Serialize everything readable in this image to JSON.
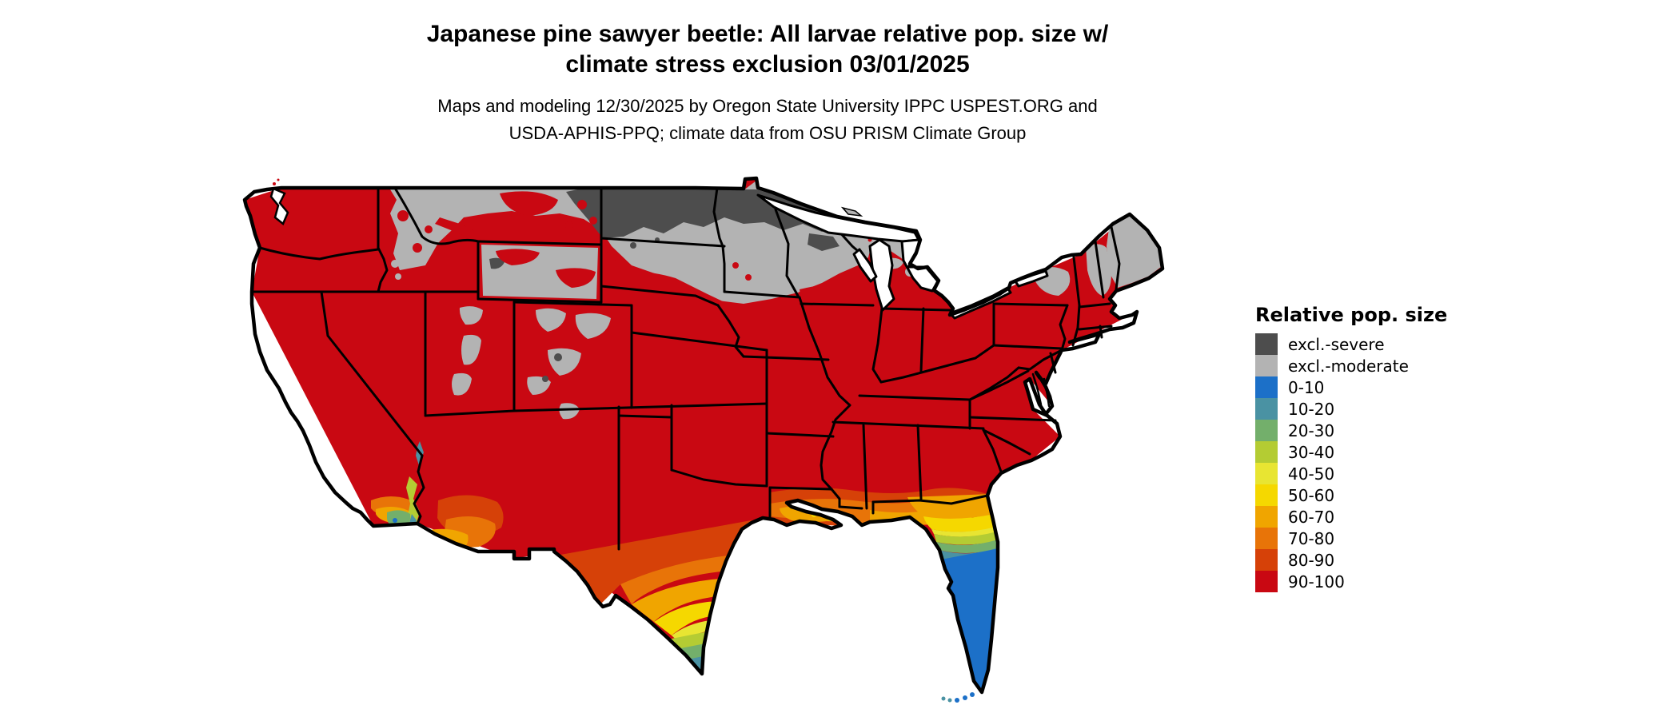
{
  "header": {
    "title_line1": "Japanese pine sawyer beetle: All larvae relative pop. size w/",
    "title_line2": "climate stress exclusion 03/01/2025",
    "subtitle_line1": "Maps and modeling 12/30/2025 by Oregon State University IPPC USPEST.ORG and",
    "subtitle_line2": "USDA-APHIS-PPQ; climate data from OSU PRISM Climate Group"
  },
  "legend": {
    "title": "Relative pop. size",
    "items": [
      {
        "label": "excl.-severe",
        "color": "#4D4D4D"
      },
      {
        "label": "excl.-moderate",
        "color": "#B3B3B3"
      },
      {
        "label": "0-10",
        "color": "#1C70C8"
      },
      {
        "label": "10-20",
        "color": "#4A92A3"
      },
      {
        "label": "20-30",
        "color": "#73AF6B"
      },
      {
        "label": "30-40",
        "color": "#B4CC33"
      },
      {
        "label": "40-50",
        "color": "#E8E532"
      },
      {
        "label": "50-60",
        "color": "#F5D800"
      },
      {
        "label": "60-70",
        "color": "#F0A500"
      },
      {
        "label": "70-80",
        "color": "#E87408"
      },
      {
        "label": "80-90",
        "color": "#D64108"
      },
      {
        "label": "90-100",
        "color": "#C90812"
      }
    ]
  },
  "map": {
    "type": "choropleth-raster",
    "area": "contiguous United States with state borders",
    "base_color": "#C90812",
    "water_color": "#FFFFFF",
    "border_color": "#000000",
    "regions_summary": [
      {
        "class": "excl.-severe",
        "areas": "North Dakota, northern Minnesota, northern Wisconsin, northeastern Montana, small spots in Wyoming and Colorado"
      },
      {
        "class": "excl.-moderate",
        "areas": "Idaho and Montana mountains, Wyoming, Utah and Colorado high country, South Dakota, southern Minnesota, Wisconsin, northern Iowa, upper Michigan, Adirondacks, northern New England, most of Maine"
      },
      {
        "class": "90-100",
        "areas": "most of the West, Great Plains, Midwest, South and East"
      },
      {
        "class": "80-90 to 0-10 gradient",
        "areas": "south Texas to the Rio Grande valley tip, Gulf Coast strip, Florida peninsula (blue 0-10 in south Florida), southwest Arizona and southeast California low desert"
      }
    ]
  }
}
